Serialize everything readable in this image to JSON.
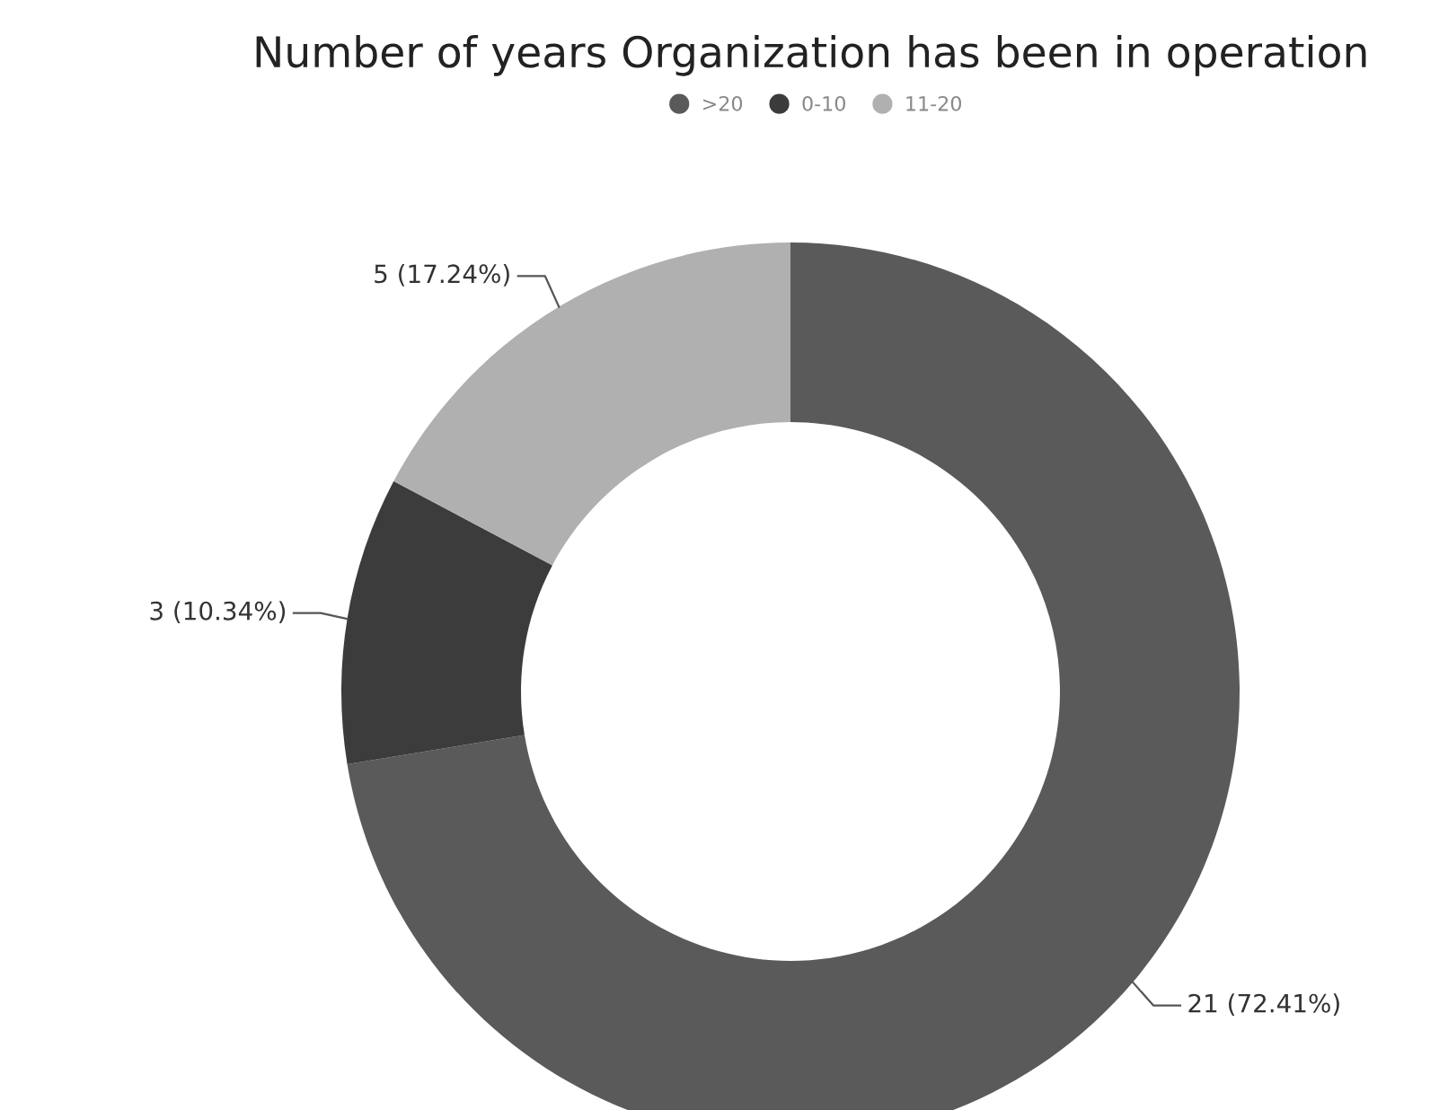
{
  "chart_data": {
    "type": "donut",
    "title": "Number of years Organization has been in operation",
    "categories": [
      ">20",
      "0-10",
      "11-20"
    ],
    "values": [
      21,
      3,
      5
    ],
    "colors": [
      "#5a5a5a",
      "#3c3c3c",
      "#b0b0b0"
    ],
    "value_labels": [
      "21 (72.41%)",
      "3 (10.34%)",
      "5 (17.24%)"
    ],
    "legend": "top"
  }
}
